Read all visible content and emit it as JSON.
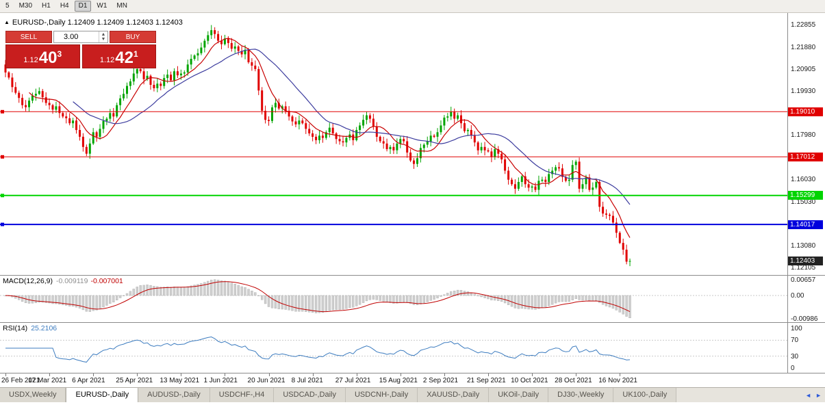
{
  "toolbar": {
    "buttons": [
      {
        "label": "5",
        "active": false
      },
      {
        "label": "M30",
        "active": false
      },
      {
        "label": "H1",
        "active": false
      },
      {
        "label": "H4",
        "active": false
      },
      {
        "label": "D1",
        "active": true
      },
      {
        "label": "W1",
        "active": false
      },
      {
        "label": "MN",
        "active": false
      }
    ]
  },
  "chart_header": {
    "title": "EURUSD-,Daily 1.12409 1.12409 1.12403 1.12403"
  },
  "trade_panel": {
    "sell_label": "SELL",
    "buy_label": "BUY",
    "volume": "3.00",
    "sell_price": {
      "prefix": "1.12",
      "big": "40",
      "sup": "3"
    },
    "buy_price": {
      "prefix": "1.12",
      "big": "42",
      "sup": "1"
    }
  },
  "chart_data": {
    "type": "candlestick",
    "title": "EURUSD-,Daily",
    "x_labels": [
      "26 Feb 2021",
      "17 Mar 2021",
      "6 Apr 2021",
      "25 Apr 2021",
      "13 May 2021",
      "1 Jun 2021",
      "20 Jun 2021",
      "8 Jul 2021",
      "27 Jul 2021",
      "15 Aug 2021",
      "2 Sep 2021",
      "21 Sep 2021",
      "10 Oct 2021",
      "28 Oct 2021",
      "16 Nov 2021"
    ],
    "label_every": 13,
    "closes": [
      1.2075,
      1.2052,
      1.201,
      1.1985,
      1.1962,
      1.193,
      1.1921,
      1.195,
      1.1972,
      1.198,
      1.1992,
      1.1965,
      1.194,
      1.193,
      1.191,
      1.1925,
      1.1895,
      1.188,
      1.1872,
      1.185,
      1.1862,
      1.182,
      1.179,
      1.1745,
      1.1715,
      1.176,
      1.181,
      1.179,
      1.1825,
      1.186,
      1.187,
      1.1895,
      1.188,
      1.193,
      1.196,
      1.198,
      1.2015,
      1.2035,
      1.207,
      1.209,
      1.208,
      1.2045,
      1.206,
      1.202,
      1.2005,
      1.2025,
      1.2015,
      1.205,
      1.2065,
      1.204,
      1.208,
      1.2062,
      1.207,
      1.2075,
      1.211,
      1.2135,
      1.215,
      1.216,
      1.2185,
      1.2215,
      1.224,
      1.2262,
      1.2245,
      1.2215,
      1.22,
      1.2225,
      1.2205,
      1.218,
      1.219,
      1.217,
      1.2155,
      1.2175,
      1.212,
      1.2105,
      1.209,
      1.1995,
      1.1905,
      1.1865,
      1.186,
      1.192,
      1.194,
      1.1915,
      1.1925,
      1.1905,
      1.188,
      1.1858,
      1.1845,
      1.1862,
      1.185,
      1.1825,
      1.1805,
      1.179,
      1.1775,
      1.1795,
      1.1785,
      1.181,
      1.183,
      1.1805,
      1.178,
      1.177,
      1.1765,
      1.1785,
      1.18,
      1.1775,
      1.182,
      1.184,
      1.1865,
      1.1885,
      1.187,
      1.1835,
      1.179,
      1.177,
      1.176,
      1.1735,
      1.1745,
      1.173,
      1.176,
      1.178,
      1.177,
      1.172,
      1.1685,
      1.167,
      1.1695,
      1.174,
      1.1755,
      1.177,
      1.1795,
      1.179,
      1.181,
      1.184,
      1.1875,
      1.188,
      1.19,
      1.187,
      1.1885,
      1.185,
      1.1815,
      1.182,
      1.1795,
      1.1765,
      1.173,
      1.1745,
      1.173,
      1.1725,
      1.17,
      1.1735,
      1.1715,
      1.169,
      1.164,
      1.16,
      1.158,
      1.156,
      1.159,
      1.1615,
      1.158,
      1.1565,
      1.157,
      1.1555,
      1.1595,
      1.16,
      1.159,
      1.1625,
      1.164,
      1.1655,
      1.165,
      1.1612,
      1.1595,
      1.16,
      1.1665,
      1.168,
      1.156,
      1.158,
      1.161,
      1.1555,
      1.1565,
      1.159,
      1.148,
      1.145,
      1.1445,
      1.144,
      1.141,
      1.1365,
      1.132,
      1.129,
      1.1237,
      1.124
    ],
    "y_axis": {
      "min": 1.1178,
      "max": 1.2338,
      "ticks": [
        1.22855,
        1.2188,
        1.20905,
        1.1993,
        1.18955,
        1.1798,
        1.17005,
        1.1603,
        1.1503,
        1.14055,
        1.1308,
        1.12105
      ]
    },
    "hlines": [
      {
        "price": 1.1901,
        "label": "1.19010",
        "color": "#e00000",
        "width": 1
      },
      {
        "price": 1.17012,
        "label": "1.17012",
        "color": "#e00000",
        "width": 1
      },
      {
        "price": 1.15299,
        "label": "1.15299",
        "color": "#00d400",
        "width": 2
      },
      {
        "price": 1.14017,
        "label": "1.14017",
        "color": "#0000dd",
        "width": 2
      }
    ],
    "last_price": {
      "value": 1.12403,
      "label": "1.12403",
      "color": "#222222"
    },
    "colors": {
      "up": "#00a400",
      "down": "#e00000",
      "ma_fast": "#c80000",
      "ma_slow": "#3c3c9e"
    },
    "indicators": [
      {
        "name": "MACD",
        "label": "MACD(12,26,9)",
        "value_main": "-0.009119",
        "value_signal": "-0.007001",
        "axis": [
          "0.00657",
          "0.00",
          "-0.00986"
        ],
        "range": {
          "max": 0.007,
          "min": -0.0105
        },
        "histogram_color": "#cfcfcf",
        "signal_color": "#c00000"
      },
      {
        "name": "RSI",
        "label": "RSI(14)",
        "value": "25.2106",
        "axis": [
          "100",
          "70",
          "30",
          "0"
        ],
        "levels": [
          70,
          30
        ],
        "line_color": "#3b7bbf"
      }
    ]
  },
  "tabs": [
    {
      "label": "USDX,Weekly",
      "active": false
    },
    {
      "label": "EURUSD-,Daily",
      "active": true
    },
    {
      "label": "AUDUSD-,Daily",
      "active": false
    },
    {
      "label": "USDCHF-,H4",
      "active": false
    },
    {
      "label": "USDCAD-,Daily",
      "active": false
    },
    {
      "label": "USDCNH-,Daily",
      "active": false
    },
    {
      "label": "XAUUSD-,Daily",
      "active": false
    },
    {
      "label": "UKOil-,Daily",
      "active": false
    },
    {
      "label": "DJ30-,Weekly",
      "active": false
    },
    {
      "label": "UK100-,Daily",
      "active": false
    }
  ]
}
